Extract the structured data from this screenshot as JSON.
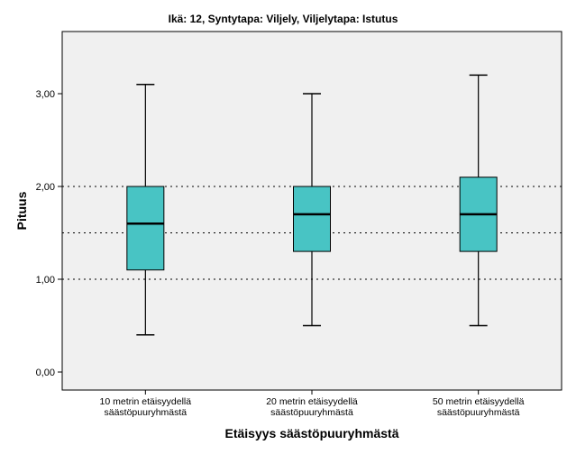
{
  "chart_data": {
    "type": "boxplot",
    "title": "Ikä: 12, Syntytapa: Viljely, Viljelytapa: Istutus",
    "xlabel": "Etäisyys säästöpuuryhmästä",
    "ylabel": "Pituus",
    "ylim": [
      -0.2,
      3.7
    ],
    "y_ticks": [
      0,
      1,
      2,
      3
    ],
    "y_tick_labels": [
      "0,00",
      "1,00",
      "2,00",
      "3,00"
    ],
    "reference_lines": [
      1.0,
      1.5,
      2.0
    ],
    "grid": false,
    "categories": [
      [
        "10 metrin etäisyydellä",
        "säästöpuuryhmästä"
      ],
      [
        "20 metrin etäisyydellä",
        "säästöpuuryhmästä"
      ],
      [
        "50 metrin etäisyydellä",
        "säästöpuuryhmästä"
      ]
    ],
    "boxes": [
      {
        "min": 0.4,
        "q1": 1.1,
        "median": 1.6,
        "q3": 2.0,
        "max": 3.1
      },
      {
        "min": 0.5,
        "q1": 1.3,
        "median": 1.7,
        "q3": 2.0,
        "max": 3.0
      },
      {
        "min": 0.5,
        "q1": 1.3,
        "median": 1.7,
        "q3": 2.1,
        "max": 3.2
      }
    ],
    "colors": {
      "box_fill": "#48c4c4",
      "plot_background": "#f0f0f0",
      "line": "#000000"
    }
  }
}
